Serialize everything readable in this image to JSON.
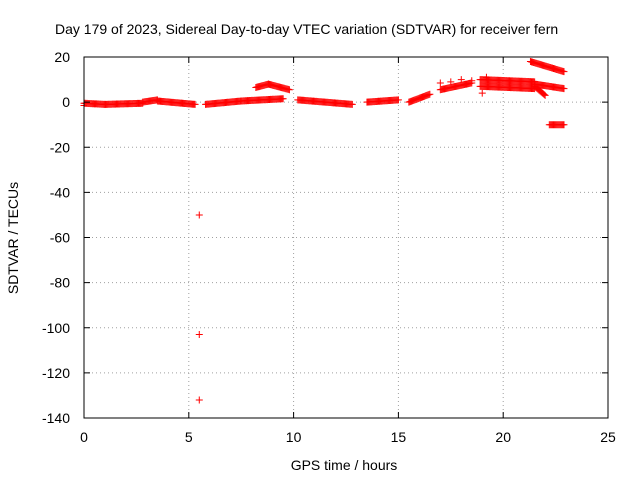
{
  "chart_data": {
    "type": "scatter",
    "title": "Day 179 of 2023, Sidereal Day-to-day VTEC variation (SDTVAR) for receiver fern",
    "xlabel": "GPS time / hours",
    "ylabel": "SDTVAR / TECUs",
    "xlim": [
      0,
      25
    ],
    "ylim": [
      -140,
      20
    ],
    "xticks": [
      0,
      5,
      10,
      15,
      20,
      25
    ],
    "yticks": [
      -140,
      -120,
      -100,
      -80,
      -60,
      -40,
      -20,
      0,
      20
    ],
    "grid": true,
    "marker": "plus",
    "colors": {
      "series": "#ff0000",
      "grid": "#a0a0a0",
      "axes": "#000000"
    },
    "series": [
      {
        "segments": [
          {
            "x_start": 0.0,
            "x_end": 1.0,
            "y_start": -0.5,
            "y_end": -1.0,
            "step": 0.05
          },
          {
            "x_start": 1.0,
            "x_end": 2.8,
            "y_start": -1.0,
            "y_end": -0.5,
            "step": 0.05
          },
          {
            "x_start": 2.8,
            "x_end": 3.5,
            "y_start": 0.0,
            "y_end": 1.0,
            "step": 0.05
          },
          {
            "x_start": 3.5,
            "x_end": 5.3,
            "y_start": 0.5,
            "y_end": -1.0,
            "step": 0.05
          },
          {
            "x_start": 5.8,
            "x_end": 7.5,
            "y_start": -1.0,
            "y_end": 0.5,
            "step": 0.05
          },
          {
            "x_start": 7.5,
            "x_end": 9.5,
            "y_start": 0.5,
            "y_end": 1.5,
            "step": 0.05
          },
          {
            "x_start": 8.2,
            "x_end": 8.8,
            "y_start": 6.5,
            "y_end": 8.0,
            "step": 0.05
          },
          {
            "x_start": 8.8,
            "x_end": 9.8,
            "y_start": 8.0,
            "y_end": 5.5,
            "step": 0.05
          },
          {
            "x_start": 10.2,
            "x_end": 12.8,
            "y_start": 1.0,
            "y_end": -1.0,
            "step": 0.05
          },
          {
            "x_start": 13.5,
            "x_end": 15.0,
            "y_start": 0.0,
            "y_end": 1.0,
            "step": 0.05
          },
          {
            "x_start": 15.5,
            "x_end": 16.5,
            "y_start": 0.0,
            "y_end": 3.5,
            "step": 0.05
          },
          {
            "x_start": 17.0,
            "x_end": 18.5,
            "y_start": 5.5,
            "y_end": 8.5,
            "step": 0.05
          },
          {
            "x_start": 18.9,
            "x_end": 21.5,
            "y_start": 10.0,
            "y_end": 9.0,
            "step": 0.05
          },
          {
            "x_start": 18.9,
            "x_end": 21.5,
            "y_start": 7.0,
            "y_end": 6.0,
            "step": 0.05
          },
          {
            "x_start": 21.5,
            "x_end": 22.0,
            "y_start": 7.0,
            "y_end": 3.0,
            "step": 0.05
          },
          {
            "x_start": 21.5,
            "x_end": 22.9,
            "y_start": 8.0,
            "y_end": 6.0,
            "step": 0.05
          },
          {
            "x_start": 21.3,
            "x_end": 22.9,
            "y_start": 18.0,
            "y_end": 13.5,
            "step": 0.05
          },
          {
            "x_start": 22.2,
            "x_end": 22.9,
            "y_start": -10.0,
            "y_end": -10.0,
            "step": 0.05
          }
        ],
        "points": [
          [
            5.5,
            -50
          ],
          [
            5.5,
            -103
          ],
          [
            5.5,
            -132
          ],
          [
            0.0,
            -1.5
          ],
          [
            17.0,
            8.5
          ],
          [
            17.5,
            9.0
          ],
          [
            18.0,
            10.0
          ],
          [
            18.5,
            9.5
          ],
          [
            19.0,
            4.0
          ],
          [
            19.2,
            11.0
          ]
        ]
      }
    ]
  }
}
